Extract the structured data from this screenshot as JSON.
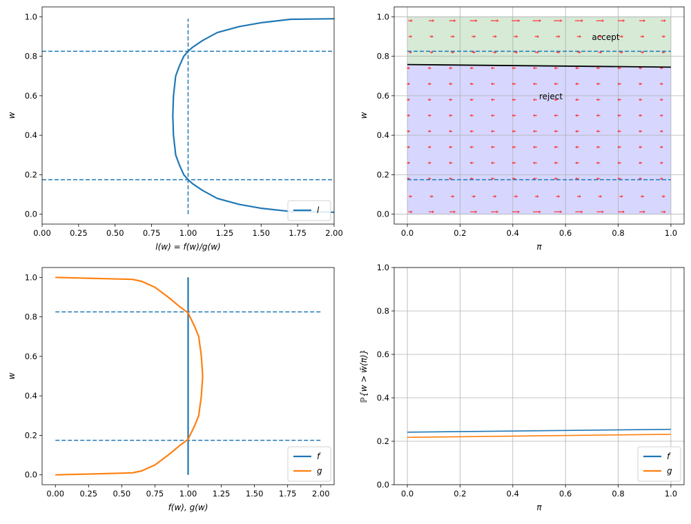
{
  "chart_data": [
    {
      "type": "line",
      "xlabel": "l(w) = f(w)/g(w)",
      "ylabel": "w",
      "xlim": [
        0,
        2
      ],
      "ylim": [
        -0.05,
        1.05
      ],
      "xticks": [
        "0.00",
        "0.25",
        "0.50",
        "0.75",
        "1.00",
        "1.25",
        "1.50",
        "1.75",
        "2.00"
      ],
      "yticks": [
        "0.0",
        "0.2",
        "0.4",
        "0.6",
        "0.8",
        "1.0"
      ],
      "grid": false,
      "legend": "lower-right",
      "series": [
        {
          "name": "l",
          "color": "#1f77b4",
          "points": [
            [
              2.0,
              0.01
            ],
            [
              1.7,
              0.014
            ],
            [
              1.5,
              0.03
            ],
            [
              1.35,
              0.05
            ],
            [
              1.2,
              0.08
            ],
            [
              1.1,
              0.12
            ],
            [
              1.03,
              0.155
            ],
            [
              1.0,
              0.175
            ],
            [
              0.97,
              0.2
            ],
            [
              0.94,
              0.25
            ],
            [
              0.915,
              0.3
            ],
            [
              0.9,
              0.4
            ],
            [
              0.895,
              0.5
            ],
            [
              0.9,
              0.6
            ],
            [
              0.915,
              0.7
            ],
            [
              0.94,
              0.75
            ],
            [
              0.97,
              0.8
            ],
            [
              1.0,
              0.825
            ],
            [
              1.03,
              0.845
            ],
            [
              1.1,
              0.88
            ],
            [
              1.2,
              0.92
            ],
            [
              1.35,
              0.95
            ],
            [
              1.5,
              0.97
            ],
            [
              1.7,
              0.987
            ],
            [
              2.0,
              0.99
            ]
          ]
        }
      ],
      "hlines": [
        0.175,
        0.825
      ],
      "vline": 1.0,
      "vline_range": [
        0,
        0.99
      ]
    },
    {
      "type": "quiver",
      "xlabel": "π",
      "ylabel": "w",
      "xlim": [
        -0.05,
        1.05
      ],
      "ylim": [
        -0.05,
        1.05
      ],
      "xticks": [
        "0.0",
        "0.2",
        "0.4",
        "0.6",
        "0.8",
        "1.0"
      ],
      "yticks": [
        "0.0",
        "0.2",
        "0.4",
        "0.6",
        "0.8",
        "1.0"
      ],
      "grid": true,
      "regions": [
        {
          "label": "accept",
          "from": "boundary",
          "to": 1.0,
          "color": "#d6ead6"
        },
        {
          "label": "reject",
          "from": 0.0,
          "to": "boundary",
          "color": "#d6d6ff"
        }
      ],
      "boundary": [
        [
          0.0,
          0.758
        ],
        [
          1.0,
          0.745
        ]
      ],
      "hlines": [
        0.175,
        0.825
      ],
      "annotations": [
        {
          "text": "accept",
          "x": 0.7,
          "y": 0.9
        },
        {
          "text": "reject",
          "x": 0.5,
          "y": 0.6
        }
      ],
      "arrow_color": "#ff3b3b"
    },
    {
      "type": "line",
      "xlabel": "f(w), g(w)",
      "ylabel": "w",
      "xlim": [
        -0.1,
        2.1
      ],
      "ylim": [
        -0.05,
        1.05
      ],
      "xticks": [
        "0.00",
        "0.25",
        "0.50",
        "0.75",
        "1.00",
        "1.25",
        "1.50",
        "1.75",
        "2.00"
      ],
      "yticks": [
        "0.0",
        "0.2",
        "0.4",
        "0.6",
        "0.8",
        "1.0"
      ],
      "grid": false,
      "legend": "lower-right",
      "series": [
        {
          "name": "f",
          "color": "#1f77b4",
          "points": [
            [
              1.0,
              0.0
            ],
            [
              1.0,
              1.0
            ]
          ]
        },
        {
          "name": "g",
          "color": "#ff7f0e",
          "points": [
            [
              0.0,
              0.0
            ],
            [
              0.3,
              0.005
            ],
            [
              0.58,
              0.01
            ],
            [
              0.65,
              0.02
            ],
            [
              0.75,
              0.05
            ],
            [
              0.85,
              0.1
            ],
            [
              0.94,
              0.15
            ],
            [
              1.0,
              0.18
            ],
            [
              1.05,
              0.25
            ],
            [
              1.08,
              0.3
            ],
            [
              1.1,
              0.4
            ],
            [
              1.11,
              0.5
            ],
            [
              1.1,
              0.6
            ],
            [
              1.08,
              0.7
            ],
            [
              1.05,
              0.75
            ],
            [
              1.0,
              0.82
            ],
            [
              0.94,
              0.85
            ],
            [
              0.85,
              0.9
            ],
            [
              0.75,
              0.95
            ],
            [
              0.65,
              0.98
            ],
            [
              0.58,
              0.99
            ],
            [
              0.3,
              0.995
            ],
            [
              0.0,
              1.0
            ]
          ]
        }
      ],
      "hlines": [
        0.175,
        0.825
      ],
      "hline_range": [
        0,
        2
      ]
    },
    {
      "type": "line",
      "xlabel": "π",
      "ylabel": "ℙ{w > w̄(π)}",
      "xlim": [
        -0.05,
        1.05
      ],
      "ylim": [
        0,
        1
      ],
      "xticks": [
        "0.0",
        "0.2",
        "0.4",
        "0.6",
        "0.8",
        "1.0"
      ],
      "yticks": [
        "0.0",
        "0.2",
        "0.4",
        "0.6",
        "0.8",
        "1.0"
      ],
      "grid": true,
      "legend": "lower-right",
      "series": [
        {
          "name": "f",
          "color": "#1f77b4",
          "points": [
            [
              0.0,
              0.242
            ],
            [
              1.0,
              0.255
            ]
          ]
        },
        {
          "name": "g",
          "color": "#ff7f0e",
          "points": [
            [
              0.0,
              0.218
            ],
            [
              1.0,
              0.232
            ]
          ]
        }
      ]
    }
  ]
}
